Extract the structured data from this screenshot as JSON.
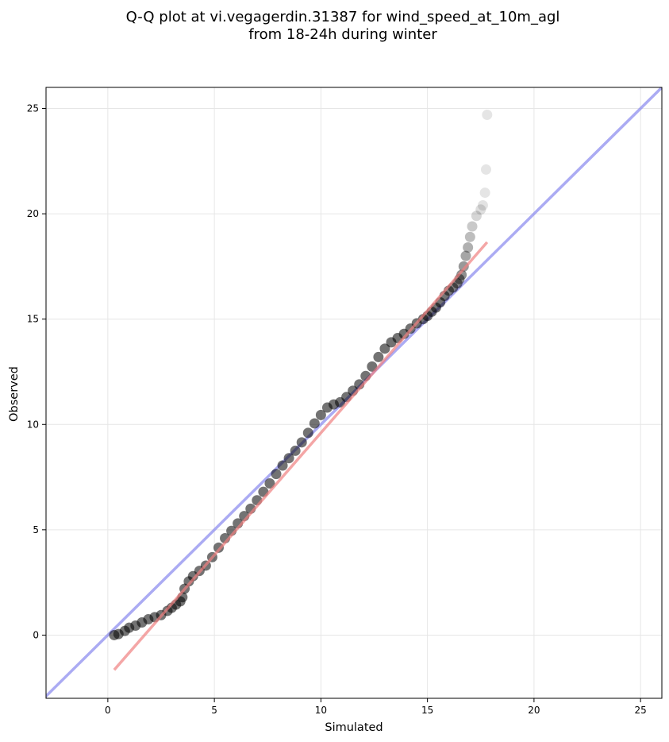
{
  "chart_data": {
    "type": "scatter",
    "title_lines": [
      "Q-Q plot at vi.vegagerdin.31387 for wind_speed_at_10m_agl",
      "from 18-24h during winter"
    ],
    "xlabel": "Simulated",
    "ylabel": "Observed",
    "xlim": [
      -2.9,
      26.0
    ],
    "ylim": [
      -3.0,
      26.0
    ],
    "xticks": [
      0,
      5,
      10,
      15,
      20,
      25
    ],
    "yticks": [
      0,
      5,
      10,
      15,
      20,
      25
    ],
    "xtick_labels": [
      "0",
      "5",
      "10",
      "15",
      "20",
      "25"
    ],
    "ytick_labels": [
      "0",
      "5",
      "10",
      "15",
      "20",
      "25"
    ],
    "grid": true,
    "reference_line": {
      "color": "#8888ee",
      "slope": 1,
      "intercept": 0
    },
    "fit_line": {
      "color": "#f08080",
      "x": [
        0.3,
        17.8
      ],
      "y": [
        -1.65,
        18.65
      ]
    },
    "points_color": "#000000",
    "quantiles": {
      "x": [
        0.3,
        0.5,
        0.8,
        1.0,
        1.3,
        1.6,
        1.9,
        2.2,
        2.5,
        2.8,
        3.0,
        3.2,
        3.4,
        3.5,
        3.6,
        3.8,
        4.0,
        4.3,
        4.6,
        4.9,
        5.2,
        5.5,
        5.8,
        6.1,
        6.4,
        6.7,
        7.0,
        7.3,
        7.6,
        7.9,
        8.2,
        8.5,
        8.8,
        9.1,
        9.4,
        9.7,
        10.0,
        10.3,
        10.6,
        10.9,
        11.2,
        11.5,
        11.8,
        12.1,
        12.4,
        12.7,
        13.0,
        13.3,
        13.6,
        13.9,
        14.2,
        14.5,
        14.8,
        15.0,
        15.2,
        15.4,
        15.6,
        15.8,
        16.0,
        16.2,
        16.4,
        16.5,
        16.6,
        16.7,
        16.8,
        16.9,
        17.0,
        17.1,
        17.3,
        17.5,
        17.6,
        17.7,
        17.75,
        17.8
      ],
      "y": [
        0.0,
        0.05,
        0.2,
        0.35,
        0.45,
        0.6,
        0.75,
        0.85,
        0.95,
        1.15,
        1.3,
        1.45,
        1.6,
        1.8,
        2.2,
        2.55,
        2.8,
        3.05,
        3.3,
        3.7,
        4.15,
        4.6,
        4.95,
        5.3,
        5.65,
        6.0,
        6.4,
        6.8,
        7.2,
        7.65,
        8.05,
        8.4,
        8.75,
        9.15,
        9.6,
        10.05,
        10.45,
        10.8,
        10.95,
        11.05,
        11.3,
        11.6,
        11.9,
        12.3,
        12.75,
        13.2,
        13.6,
        13.9,
        14.1,
        14.3,
        14.55,
        14.8,
        15.0,
        15.15,
        15.35,
        15.55,
        15.8,
        16.1,
        16.35,
        16.5,
        16.7,
        16.9,
        17.1,
        17.5,
        18.0,
        18.4,
        18.9,
        19.4,
        19.9,
        20.2,
        20.4,
        21.0,
        22.1,
        24.7
      ]
    }
  }
}
